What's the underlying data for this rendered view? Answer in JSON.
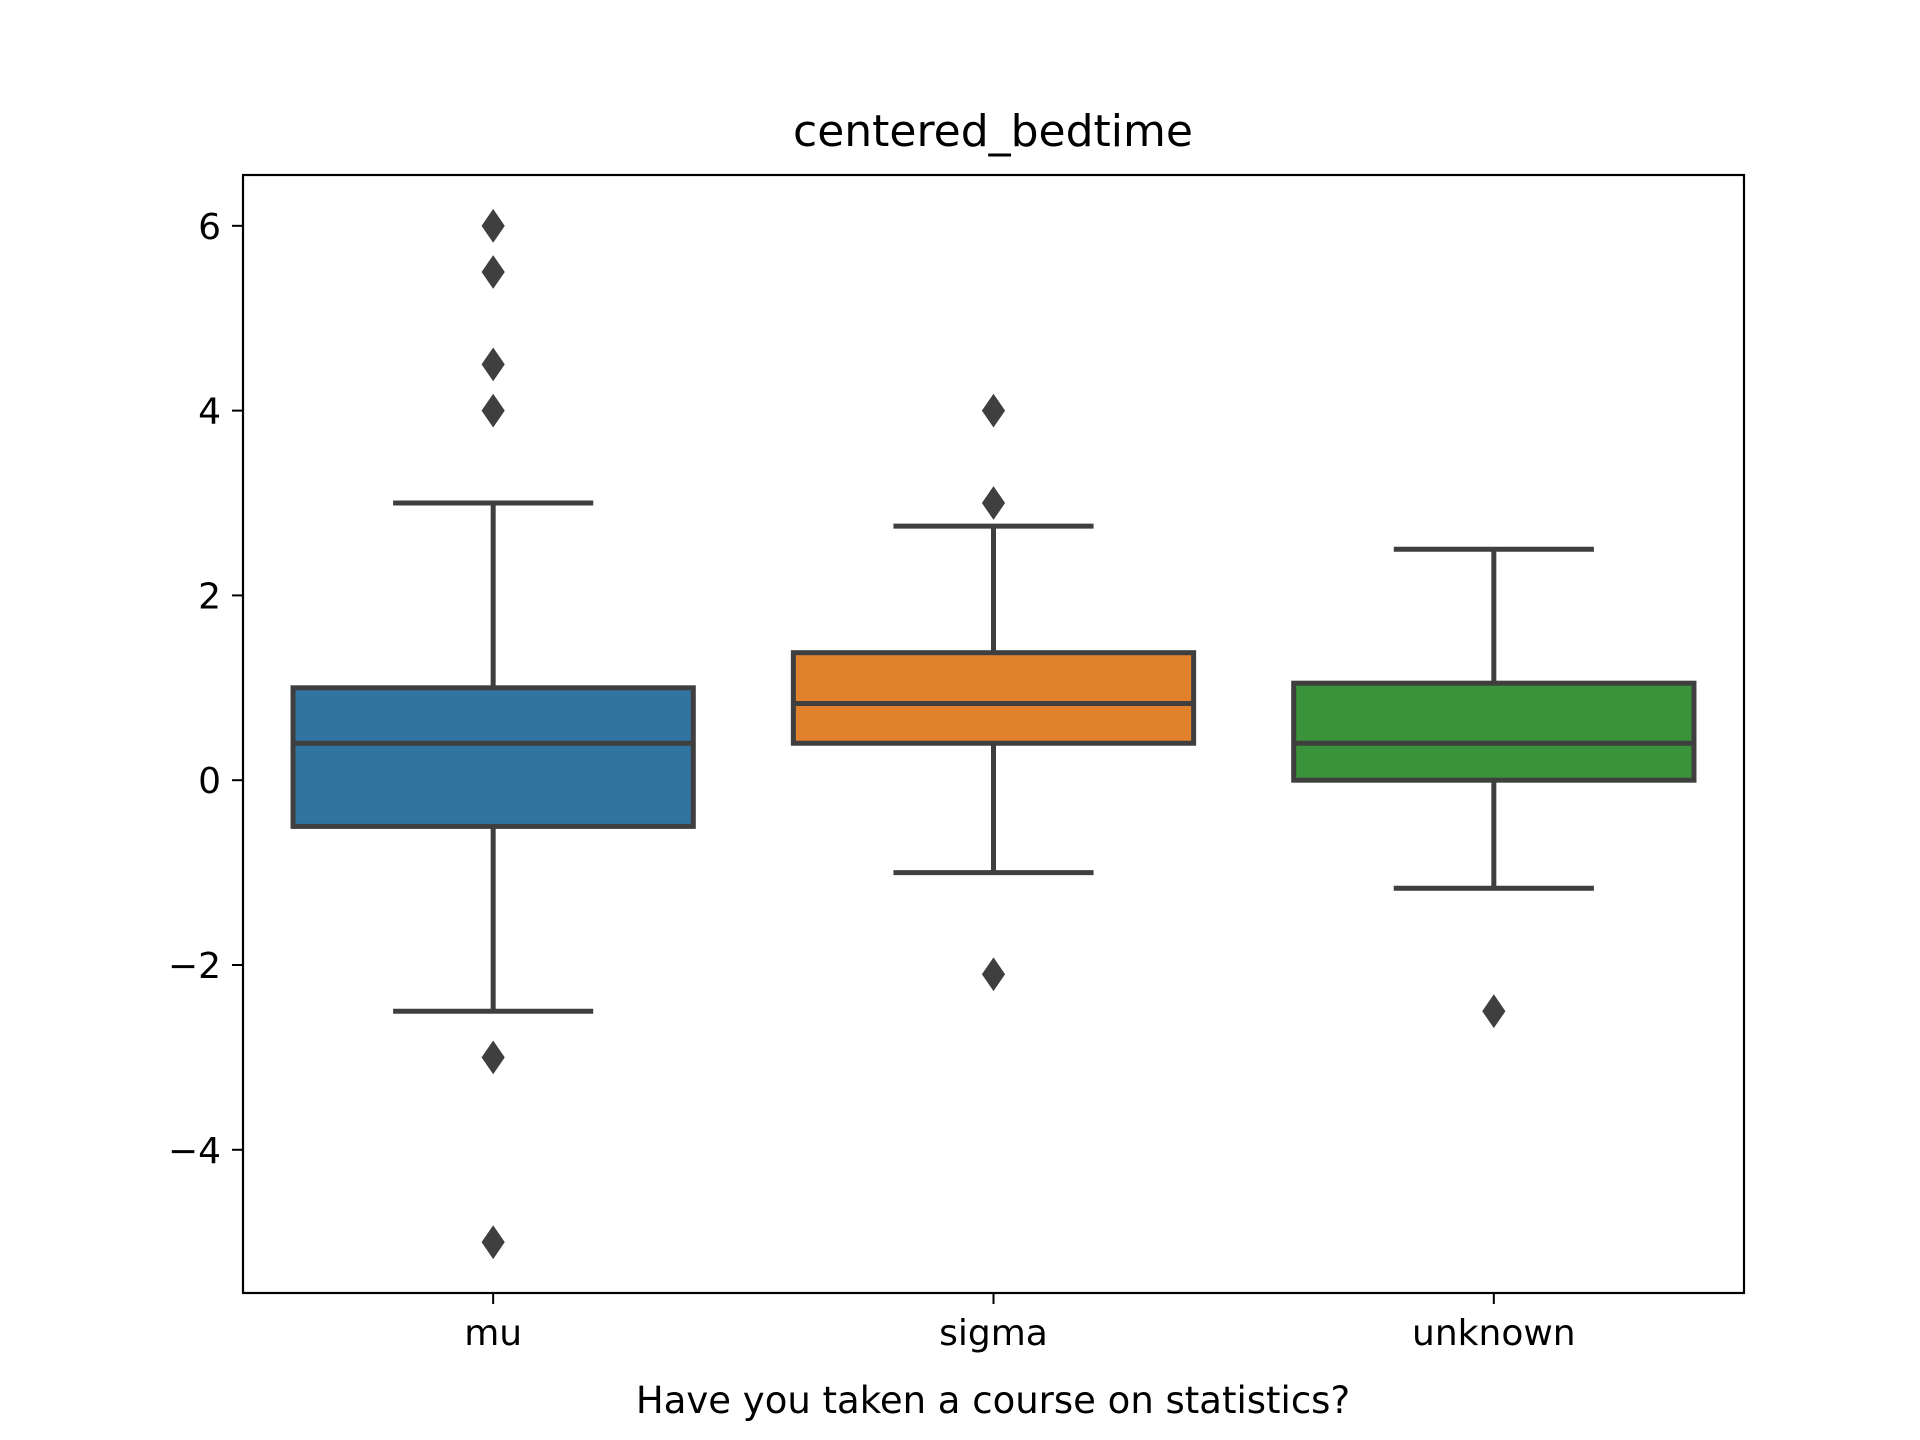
{
  "chart_data": {
    "type": "box",
    "title": "centered_bedtime",
    "xlabel": "Have you taken a course on statistics?",
    "ylabel": "",
    "ylim": [
      -5.55,
      6.55
    ],
    "yticks": [
      -4,
      -2,
      0,
      2,
      4,
      6
    ],
    "ytick_labels": [
      "−4",
      "−2",
      "0",
      "2",
      "4",
      "6"
    ],
    "grid": false,
    "categories": [
      "mu",
      "sigma",
      "unknown"
    ],
    "boxes": [
      {
        "category": "mu",
        "color": "#3274a1",
        "whisker_low": -2.5,
        "q1": -0.5,
        "median": 0.4,
        "q3": 1.0,
        "whisker_high": 3.0,
        "outliers": [
          6.0,
          5.5,
          4.5,
          4.0,
          -3.0,
          -5.0
        ]
      },
      {
        "category": "sigma",
        "color": "#e1812c",
        "whisker_low": -1.0,
        "q1": 0.4,
        "median": 0.83,
        "q3": 1.38,
        "whisker_high": 2.75,
        "outliers": [
          4.0,
          3.0,
          -2.1
        ]
      },
      {
        "category": "unknown",
        "color": "#3a923a",
        "whisker_low": -1.17,
        "q1": 0.0,
        "median": 0.4,
        "q3": 1.05,
        "whisker_high": 2.5,
        "outliers": [
          -2.5
        ]
      }
    ],
    "line_color": "#3f3f3f"
  }
}
